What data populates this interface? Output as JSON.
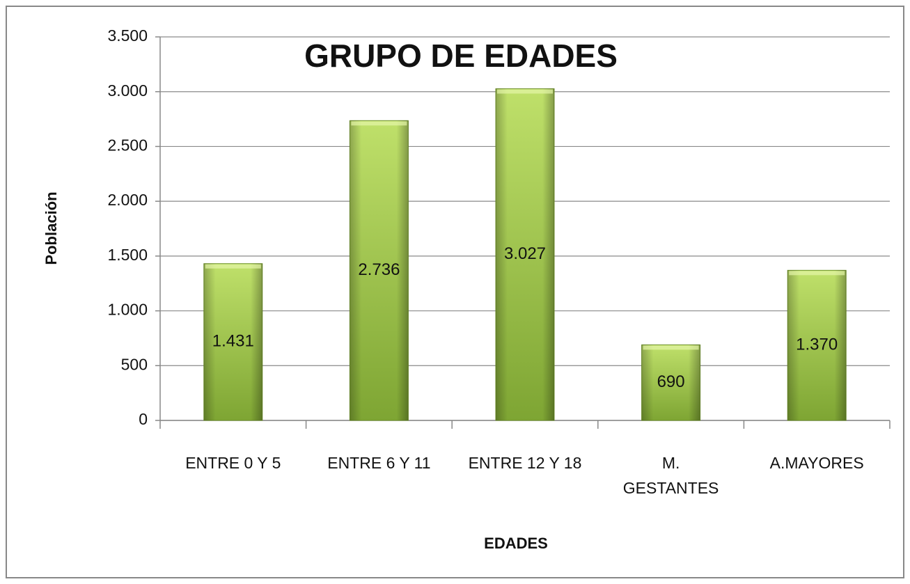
{
  "chart_data": {
    "type": "bar",
    "title": "GRUPO DE EDADES",
    "x_label": "EDADES",
    "y_label": "Población",
    "categories": [
      "ENTRE 0 Y 5",
      "ENTRE 6 Y 11",
      "ENTRE 12 Y 18",
      "M.\nGESTANTES",
      "A.MAYORES"
    ],
    "values": [
      1431,
      2736,
      3027,
      690,
      1370
    ],
    "value_labels": [
      "1.431",
      "2.736",
      "3.027",
      "690",
      "1.370"
    ],
    "color": "#9cc74a",
    "ylim": [
      0,
      3500
    ],
    "yticks": [
      0,
      500,
      {
        "value": 1000,
        "label": "1.000"
      },
      {
        "value": 1500,
        "label": "1.500"
      },
      {
        "value": 2000,
        "label": "2.000"
      },
      {
        "value": 2500,
        "label": "2.500"
      },
      {
        "value": 3000,
        "label": "3.000"
      },
      {
        "value": 3500,
        "label": "3.500"
      }
    ],
    "grid": true
  }
}
